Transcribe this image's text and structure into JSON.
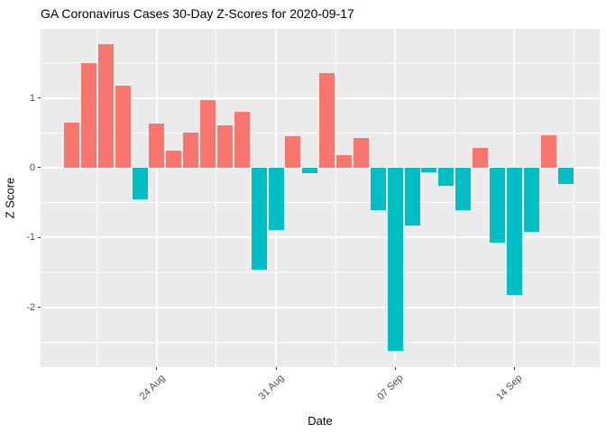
{
  "chart_data": {
    "type": "bar",
    "title": "GA Coronavirus Cases 30-Day Z-Scores for 2020-09-17",
    "xlabel": "Date",
    "ylabel": "Z Score",
    "x": [
      "2020-08-19",
      "2020-08-20",
      "2020-08-21",
      "2020-08-22",
      "2020-08-23",
      "2020-08-24",
      "2020-08-25",
      "2020-08-26",
      "2020-08-27",
      "2020-08-28",
      "2020-08-29",
      "2020-08-30",
      "2020-08-31",
      "2020-09-01",
      "2020-09-02",
      "2020-09-03",
      "2020-09-04",
      "2020-09-05",
      "2020-09-06",
      "2020-09-07",
      "2020-09-08",
      "2020-09-09",
      "2020-09-10",
      "2020-09-11",
      "2020-09-12",
      "2020-09-13",
      "2020-09-14",
      "2020-09-15",
      "2020-09-16",
      "2020-09-17"
    ],
    "values": [
      0.64,
      1.5,
      1.77,
      1.18,
      -0.46,
      0.63,
      0.25,
      0.5,
      0.97,
      0.61,
      0.8,
      -1.46,
      -0.9,
      0.45,
      -0.08,
      1.35,
      0.18,
      0.42,
      -0.61,
      -2.63,
      -0.83,
      -0.07,
      -0.26,
      -0.61,
      0.28,
      -1.08,
      -1.83,
      -0.92,
      0.47,
      -0.24
    ],
    "bar_colors": {
      "positive": "#F8766D",
      "negative": "#00BFC4"
    },
    "x_ticks": [
      {
        "label": "24 Aug",
        "index": 5
      },
      {
        "label": "31 Aug",
        "index": 12
      },
      {
        "label": "07 Sep",
        "index": 19
      },
      {
        "label": "14 Sep",
        "index": 26
      }
    ],
    "x_minor_indices": [
      1.5,
      8.5,
      15.5,
      22.5,
      29.5
    ],
    "y_ticks": [
      {
        "label": "1",
        "value": 1
      },
      {
        "label": "0",
        "value": 0
      },
      {
        "label": "-1",
        "value": -1
      },
      {
        "label": "-2",
        "value": -2
      }
    ],
    "y_minor_values": [
      1.5,
      0.5,
      -0.5,
      -1.5,
      -2.5
    ],
    "ylim": [
      -2.86,
      1.99
    ],
    "grid": true,
    "legend_position": "none",
    "style": {
      "page_bg": "#FFFFFF",
      "panel_bg": "#EBEBEB",
      "grid_color": "#FFFFFF",
      "tick_text_color": "#4D4D4D",
      "axis_title_color": "#000000",
      "tick_mark_color": "#333333"
    }
  }
}
